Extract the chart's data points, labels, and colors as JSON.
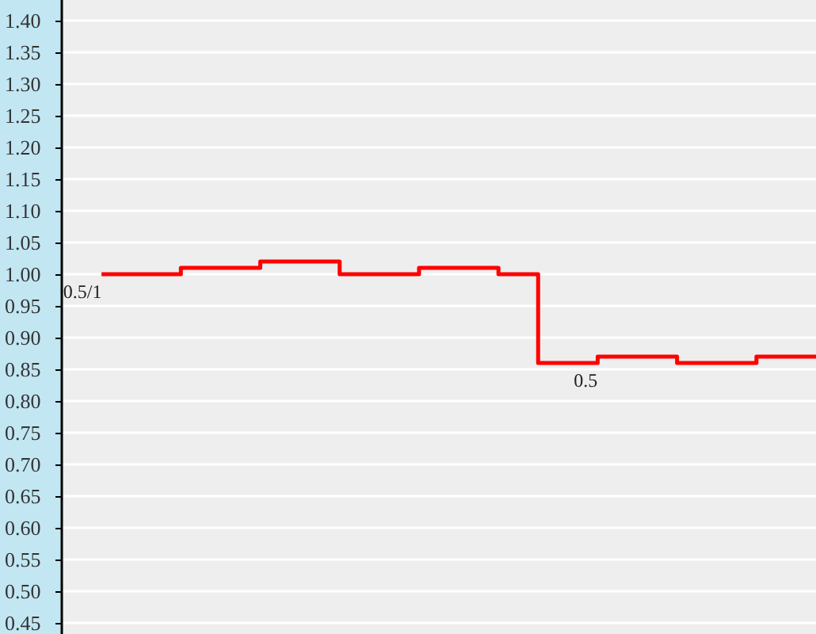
{
  "chart_data": {
    "type": "step",
    "tick_labels": "y",
    "grid": "y",
    "marker": "none",
    "line_style": "solid",
    "categories": [
      null,
      null,
      null,
      null,
      null,
      null,
      null,
      null,
      null,
      null,
      null,
      null,
      null,
      null,
      null,
      null,
      null,
      null,
      null,
      null,
      null,
      null,
      null,
      null,
      null,
      null,
      null,
      null,
      null,
      null,
      null,
      null,
      null,
      null,
      null,
      null,
      null
    ],
    "ylim": [
      0.4325,
      1.4325
    ],
    "yticks": [
      {
        "value": 0.45,
        "label": "0.45"
      },
      {
        "value": 0.5,
        "label": "0.50"
      },
      {
        "value": 0.55,
        "label": "0.55"
      },
      {
        "value": 0.6,
        "label": "0.60"
      },
      {
        "value": 0.65,
        "label": "0.65"
      },
      {
        "value": 0.7,
        "label": "0.70"
      },
      {
        "value": 0.75,
        "label": "0.75"
      },
      {
        "value": 0.8,
        "label": "0.80"
      },
      {
        "value": 0.85,
        "label": "0.85"
      },
      {
        "value": 0.9,
        "label": "0.90"
      },
      {
        "value": 0.95,
        "label": "0.95"
      },
      {
        "value": 1.0,
        "label": "1.00"
      },
      {
        "value": 1.05,
        "label": "1.05"
      },
      {
        "value": 1.1,
        "label": "1.10"
      },
      {
        "value": 1.15,
        "label": "1.15"
      },
      {
        "value": 1.2,
        "label": "1.20"
      },
      {
        "value": 1.25,
        "label": "1.25"
      },
      {
        "value": 1.3,
        "label": "1.30"
      },
      {
        "value": 1.35,
        "label": "1.35"
      },
      {
        "value": 1.4,
        "label": "1.40"
      }
    ],
    "series": [
      {
        "color": "#ff0000",
        "values": [
          1.0,
          1.0,
          1.0,
          1.0,
          1.01,
          1.01,
          1.01,
          1.01,
          1.02,
          1.02,
          1.02,
          1.02,
          1.0,
          1.0,
          1.0,
          1.0,
          1.01,
          1.01,
          1.01,
          1.01,
          1.0,
          1.0,
          0.86,
          0.86,
          0.86,
          0.87,
          0.87,
          0.87,
          0.87,
          0.86,
          0.86,
          0.86,
          0.86,
          0.87,
          0.87,
          0.87,
          0.87
        ]
      }
    ],
    "annotations": [
      "0.5/1",
      "0.5"
    ]
  }
}
